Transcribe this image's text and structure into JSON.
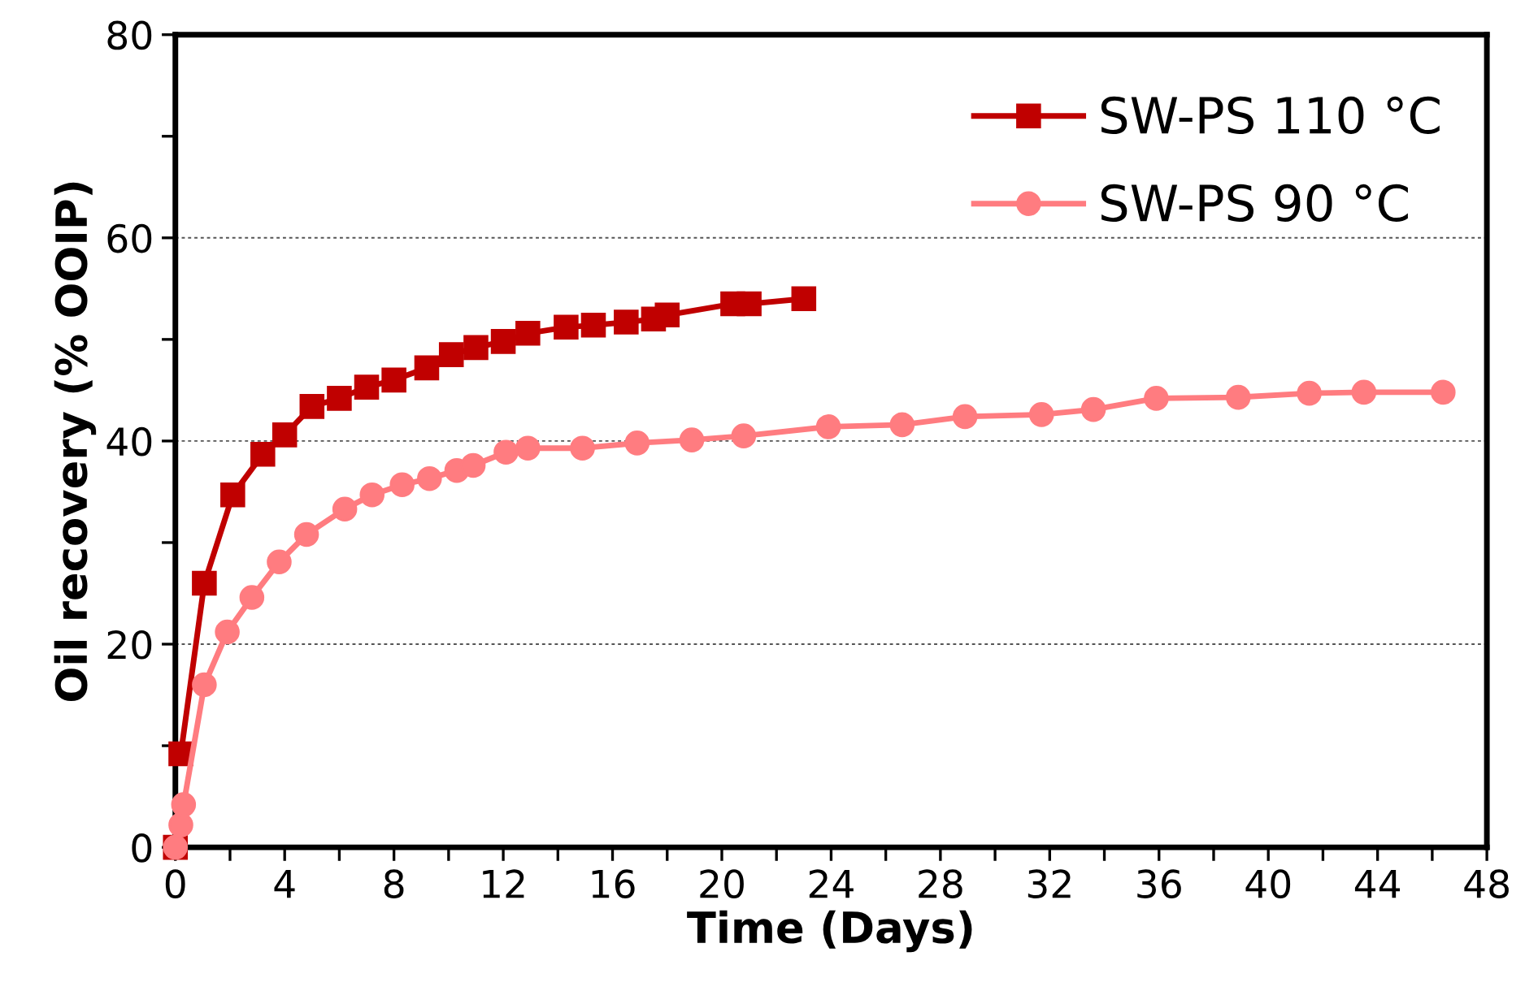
{
  "chart_data": {
    "type": "line",
    "xlabel": "Time (Days)",
    "ylabel": "Oil recovery (% OOIP)",
    "xlim": [
      0,
      48
    ],
    "ylim": [
      0,
      80
    ],
    "xticks": [
      0,
      {
        "value": 2,
        "label": null
      },
      4,
      {
        "value": 6,
        "label": null
      },
      8,
      {
        "value": 10,
        "label": null
      },
      12,
      {
        "value": 14,
        "label": null
      },
      16,
      {
        "value": 18,
        "label": null
      },
      20,
      {
        "value": 22,
        "label": null
      },
      24,
      {
        "value": 26,
        "label": null
      },
      28,
      {
        "value": 30,
        "label": null
      },
      32,
      {
        "value": 34,
        "label": null
      },
      36,
      {
        "value": 38,
        "label": null
      },
      40,
      {
        "value": 42,
        "label": null
      },
      44,
      {
        "value": 46,
        "label": null
      },
      48
    ],
    "yticks": [
      0,
      {
        "value": 10,
        "label": null
      },
      20,
      {
        "value": 30,
        "label": null
      },
      40,
      {
        "value": 50,
        "label": null
      },
      60,
      {
        "value": 70,
        "label": null
      },
      80
    ],
    "grid": "y",
    "legend": "top right",
    "line_style": "solid",
    "series": [
      {
        "name": "SW-PS 110 °C",
        "color": "#c00000",
        "marker": "square",
        "x": [
          0,
          0.05,
          0.1,
          0.2,
          1.06,
          2.1,
          3.2,
          4,
          5,
          6,
          7,
          8,
          9.2,
          10.1,
          11,
          12,
          12.9,
          14.3,
          15.3,
          16.5,
          17.5,
          18,
          20.4,
          21,
          23
        ],
        "values": [
          0,
          null,
          null,
          9.2,
          26,
          34.7,
          38.7,
          40.6,
          43.4,
          44.2,
          45.3,
          46,
          47.2,
          48.5,
          49.2,
          49.8,
          50.6,
          51.2,
          51.4,
          51.7,
          52,
          52.4,
          53.5,
          53.5,
          54
        ]
      },
      {
        "name": "SW-PS 90 °C",
        "color": "#ff7c80",
        "marker": "circle",
        "x": [
          0,
          0.1,
          0.2,
          0.3,
          1.06,
          1.9,
          2.8,
          3.8,
          4.8,
          6.2,
          7.2,
          8.3,
          9.3,
          10.3,
          10.9,
          12.1,
          12.9,
          14.9,
          16.9,
          18.9,
          20.8,
          23.9,
          26.6,
          28.9,
          31.7,
          33.6,
          35.9,
          38.9,
          41.5,
          43.5,
          46.4
        ],
        "values": [
          0,
          null,
          2.2,
          4.2,
          16,
          21.2,
          24.6,
          28.1,
          30.8,
          33.3,
          34.7,
          35.7,
          36.3,
          37.1,
          37.6,
          38.9,
          39.3,
          39.3,
          39.8,
          40.1,
          40.5,
          41.4,
          41.6,
          42.4,
          42.6,
          43.1,
          44.2,
          44.3,
          44.7,
          44.8,
          44.8
        ]
      }
    ]
  }
}
